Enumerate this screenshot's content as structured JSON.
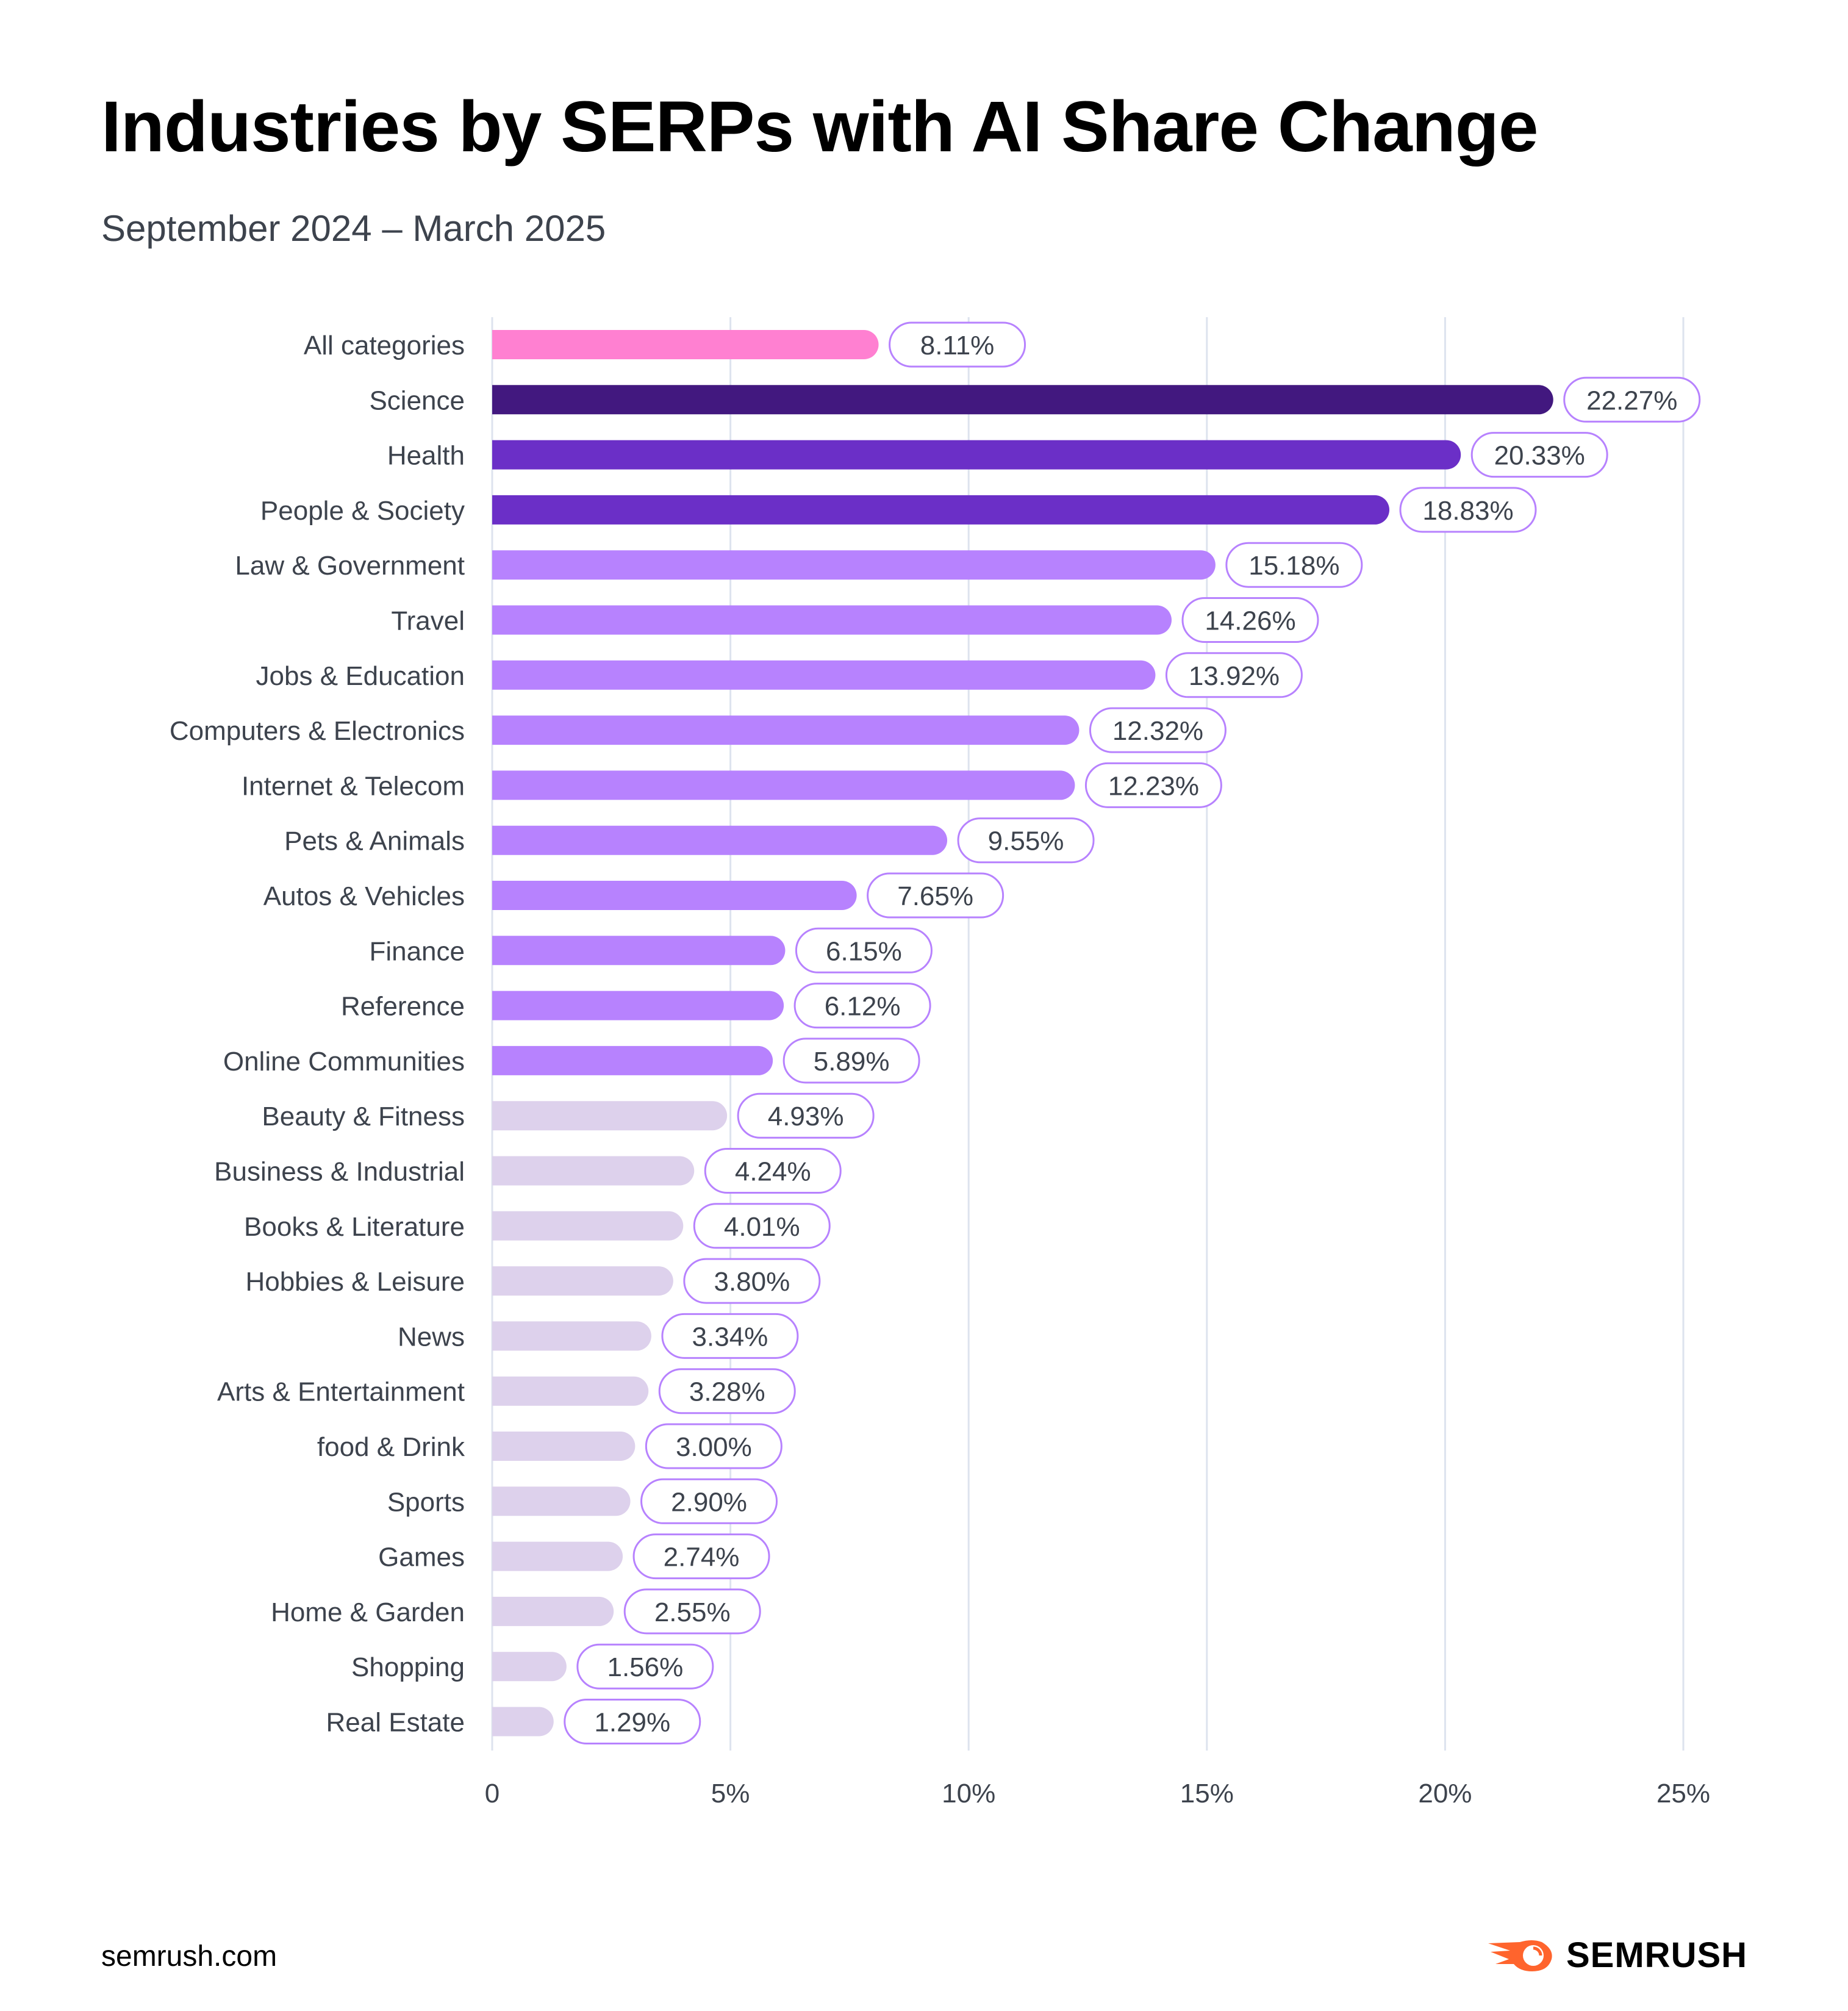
{
  "header": {
    "title": "Industries by SERPs with AI Share Change",
    "subtitle": "September 2024 – March 2025"
  },
  "footer": {
    "url": "semrush.com",
    "brand": "SEMRUSH"
  },
  "colors": {
    "all_categories": "#ff80d1",
    "science": "#42187f",
    "top": "#6b2fc7",
    "mid": "#b782fe",
    "low": "#ddd1ec",
    "label_border": "#b782fe",
    "grid": "#dde3ee",
    "text": "#3d434d",
    "brand_orange": "#ff642d"
  },
  "chart_data": {
    "type": "bar",
    "orientation": "horizontal",
    "title": "Industries by SERPs with AI Share Change",
    "subtitle": "September 2024 – March 2025",
    "xlabel": "",
    "ylabel": "",
    "xlim": [
      0,
      25
    ],
    "x_ticks": [
      0,
      5,
      10,
      15,
      20,
      25
    ],
    "x_tick_labels": [
      "0",
      "5%",
      "10%",
      "15%",
      "20%",
      "25%"
    ],
    "grid": "vertical",
    "categories": [
      "All categories",
      "Science",
      "Health",
      "People & Society",
      "Law & Government",
      "Travel",
      "Jobs & Education",
      "Computers & Electronics",
      "Internet & Telecom",
      "Pets & Animals",
      "Autos & Vehicles",
      "Finance",
      "Reference",
      "Online Communities",
      "Beauty & Fitness",
      "Business &  Industrial",
      "Books & Literature",
      "Hobbies & Leisure",
      "News",
      "Arts & Entertainment",
      "food & Drink",
      "Sports",
      "Games",
      "Home & Garden",
      "Shopping",
      "Real Estate"
    ],
    "values": [
      8.11,
      22.27,
      20.33,
      18.83,
      15.18,
      14.26,
      13.92,
      12.32,
      12.23,
      9.55,
      7.65,
      6.15,
      6.12,
      5.89,
      4.93,
      4.24,
      4.01,
      3.8,
      3.34,
      3.28,
      3.0,
      2.9,
      2.74,
      2.55,
      1.56,
      1.29
    ],
    "value_labels": [
      "8.11%",
      "22.27%",
      "20.33%",
      "18.83%",
      "15.18%",
      "14.26%",
      "13.92%",
      "12.32%",
      "12.23%",
      "9.55%",
      "7.65%",
      "6.15%",
      "6.12%",
      "5.89%",
      "4.93%",
      "4.24%",
      "4.01%",
      "3.80%",
      "3.34%",
      "3.28%",
      "3.00%",
      "2.90%",
      "2.74%",
      "2.55%",
      "1.56%",
      "1.29%"
    ],
    "color_groups": [
      "all_categories",
      "science",
      "top",
      "top",
      "mid",
      "mid",
      "mid",
      "mid",
      "mid",
      "mid",
      "mid",
      "mid",
      "mid",
      "mid",
      "low",
      "low",
      "low",
      "low",
      "low",
      "low",
      "low",
      "low",
      "low",
      "low",
      "low",
      "low"
    ]
  }
}
